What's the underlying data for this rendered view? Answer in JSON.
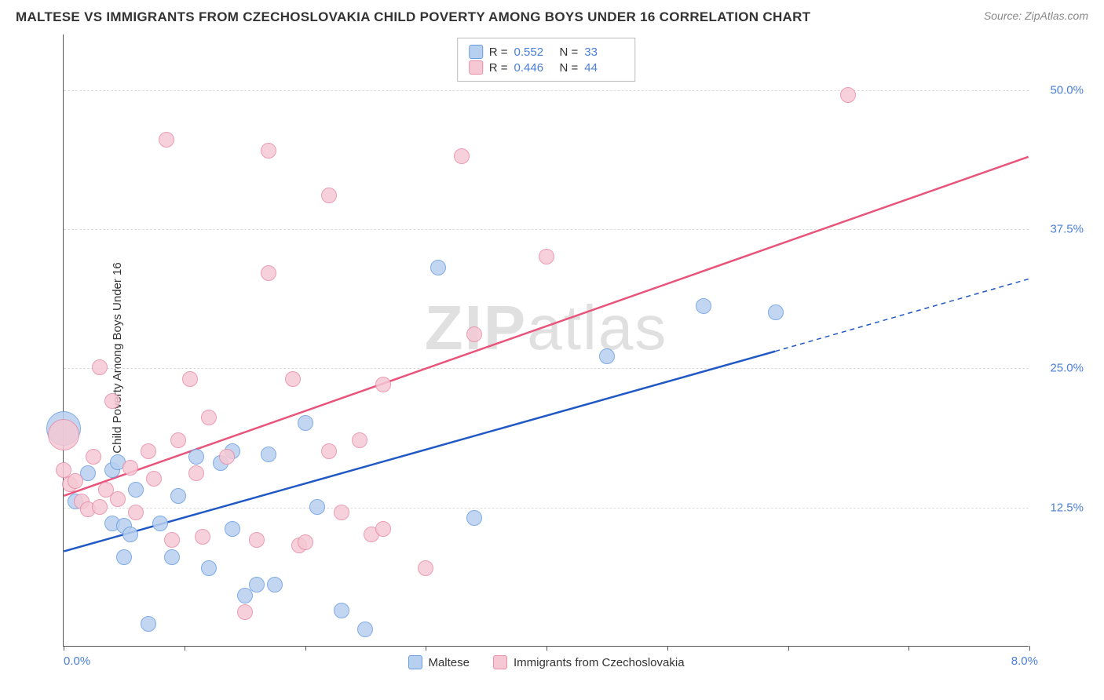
{
  "title": "MALTESE VS IMMIGRANTS FROM CZECHOSLOVAKIA CHILD POVERTY AMONG BOYS UNDER 16 CORRELATION CHART",
  "source": "Source: ZipAtlas.com",
  "watermark_bold": "ZIP",
  "watermark_light": "atlas",
  "y_axis_title": "Child Poverty Among Boys Under 16",
  "x_min_label": "0.0%",
  "x_max_label": "8.0%",
  "correlation": {
    "series": [
      {
        "r_label": "R =",
        "r": "0.552",
        "n_label": "N =",
        "n": "33"
      },
      {
        "r_label": "R =",
        "r": "0.446",
        "n_label": "N =",
        "n": "44"
      }
    ]
  },
  "legend": {
    "series1": "Maltese",
    "series2": "Immigrants from Czechoslovakia"
  },
  "chart": {
    "type": "scatter",
    "xlim": [
      0,
      8
    ],
    "ylim": [
      0,
      55
    ],
    "y_ticks": [
      12.5,
      25.0,
      37.5,
      50.0
    ],
    "y_tick_labels": [
      "12.5%",
      "25.0%",
      "37.5%",
      "50.0%"
    ],
    "x_tick_step": 1,
    "background_color": "#ffffff",
    "grid_color": "#dddddd",
    "series": [
      {
        "name": "Maltese",
        "marker_fill": "#b8d0f0",
        "marker_stroke": "#6a9de0",
        "marker_r": 10,
        "trend_color": "#2058c4",
        "trend_width": 2.5,
        "trend": {
          "x1": 0,
          "y1": 8.5,
          "x2": 5.9,
          "y2": 26.5,
          "dash_x2": 8,
          "dash_y2": 33
        },
        "points": [
          [
            0.0,
            19.5,
            22
          ],
          [
            0.1,
            13.0
          ],
          [
            0.2,
            15.5
          ],
          [
            0.4,
            11.0
          ],
          [
            0.4,
            15.8
          ],
          [
            0.45,
            16.5
          ],
          [
            0.5,
            8.0
          ],
          [
            0.5,
            10.8
          ],
          [
            0.55,
            10.0
          ],
          [
            0.6,
            14.0
          ],
          [
            0.7,
            2.0
          ],
          [
            0.8,
            11.0
          ],
          [
            0.9,
            8.0
          ],
          [
            0.95,
            13.5
          ],
          [
            1.1,
            17.0
          ],
          [
            1.2,
            7.0
          ],
          [
            1.3,
            16.4
          ],
          [
            1.4,
            17.5
          ],
          [
            1.4,
            10.5
          ],
          [
            1.5,
            4.5
          ],
          [
            1.6,
            5.5
          ],
          [
            1.7,
            17.2
          ],
          [
            1.75,
            5.5
          ],
          [
            2.0,
            20.0
          ],
          [
            2.1,
            12.5
          ],
          [
            2.3,
            3.2
          ],
          [
            2.5,
            1.5
          ],
          [
            3.1,
            34.0
          ],
          [
            3.4,
            11.5
          ],
          [
            4.5,
            26.0
          ],
          [
            5.3,
            30.5
          ],
          [
            5.9,
            30.0
          ]
        ]
      },
      {
        "name": "Immigrants from Czechoslovakia",
        "marker_fill": "#f5c8d4",
        "marker_stroke": "#e88ca8",
        "marker_r": 10,
        "trend_color": "#e8547a",
        "trend_width": 2.5,
        "trend": {
          "x1": 0,
          "y1": 13.5,
          "x2": 8,
          "y2": 44
        },
        "points": [
          [
            0.0,
            19.0,
            20
          ],
          [
            0.0,
            15.8
          ],
          [
            0.05,
            14.5
          ],
          [
            0.1,
            14.8
          ],
          [
            0.15,
            13.0
          ],
          [
            0.2,
            12.3
          ],
          [
            0.25,
            17.0
          ],
          [
            0.3,
            12.5
          ],
          [
            0.3,
            25.0
          ],
          [
            0.35,
            14.0
          ],
          [
            0.4,
            22.0
          ],
          [
            0.45,
            13.2
          ],
          [
            0.55,
            16.0
          ],
          [
            0.6,
            12.0
          ],
          [
            0.7,
            17.5
          ],
          [
            0.75,
            15.0
          ],
          [
            0.85,
            45.5
          ],
          [
            0.9,
            9.5
          ],
          [
            0.95,
            18.5
          ],
          [
            1.05,
            24.0
          ],
          [
            1.1,
            15.5
          ],
          [
            1.15,
            9.8
          ],
          [
            1.2,
            20.5
          ],
          [
            1.35,
            17.0
          ],
          [
            1.5,
            3.0
          ],
          [
            1.6,
            9.5
          ],
          [
            1.7,
            44.5
          ],
          [
            1.7,
            33.5
          ],
          [
            1.9,
            24.0
          ],
          [
            1.95,
            9.0
          ],
          [
            2.0,
            9.3
          ],
          [
            2.2,
            17.5
          ],
          [
            2.2,
            40.5
          ],
          [
            2.3,
            12.0
          ],
          [
            2.45,
            18.5
          ],
          [
            2.55,
            10.0
          ],
          [
            2.65,
            10.5
          ],
          [
            2.65,
            23.5
          ],
          [
            3.0,
            7.0
          ],
          [
            3.3,
            44.0
          ],
          [
            3.4,
            28.0
          ],
          [
            4.0,
            35.0
          ],
          [
            6.5,
            49.5
          ]
        ]
      }
    ]
  }
}
